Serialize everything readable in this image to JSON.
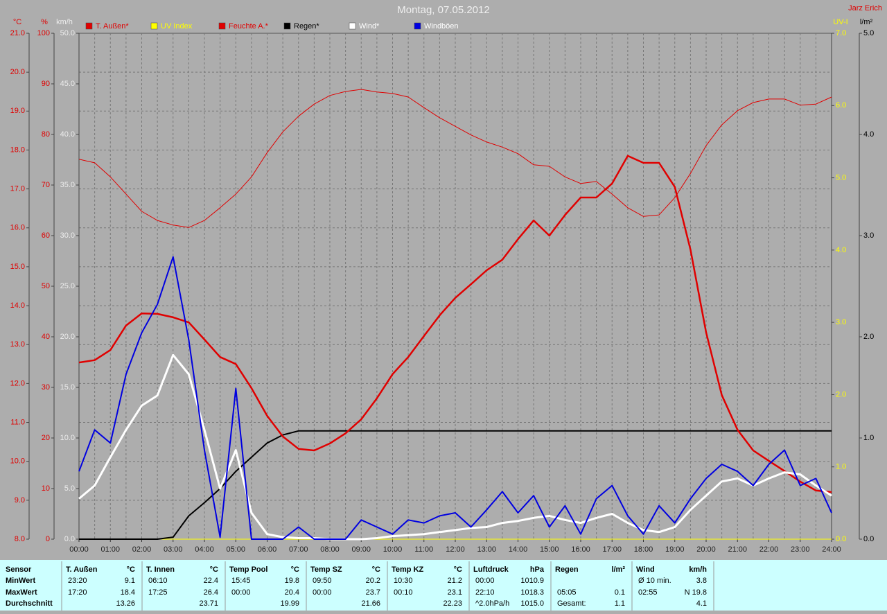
{
  "chart_data": {
    "type": "line",
    "title": "Montag, 07.05.2012",
    "annotation": "Jarz Erich",
    "x": [
      "00:00",
      "00:30",
      "01:00",
      "01:30",
      "02:00",
      "02:30",
      "03:00",
      "03:30",
      "04:00",
      "04:30",
      "05:00",
      "05:30",
      "06:00",
      "06:30",
      "07:00",
      "07:30",
      "08:00",
      "08:30",
      "09:00",
      "09:30",
      "10:00",
      "10:30",
      "11:00",
      "11:30",
      "12:00",
      "12:30",
      "13:00",
      "13:30",
      "14:00",
      "14:30",
      "15:00",
      "15:30",
      "16:00",
      "16:30",
      "17:00",
      "17:30",
      "18:00",
      "18:30",
      "19:00",
      "19:30",
      "20:00",
      "20:30",
      "21:00",
      "21:30",
      "22:00",
      "22:30",
      "23:00",
      "23:30",
      "24:00"
    ],
    "xticks": [
      "00:00",
      "01:00",
      "02:00",
      "03:00",
      "04:00",
      "05:00",
      "06:00",
      "07:00",
      "08:00",
      "09:00",
      "10:00",
      "11:00",
      "12:00",
      "13:00",
      "14:00",
      "15:00",
      "16:00",
      "17:00",
      "18:00",
      "19:00",
      "20:00",
      "21:00",
      "22:00",
      "23:00",
      "24:00"
    ],
    "grid": true,
    "axes": [
      {
        "id": "temp",
        "label": "°C",
        "color": "#e00000",
        "lim": [
          8,
          21
        ],
        "ticks": [
          {
            "value": 8,
            "label": "8.0"
          },
          {
            "value": 9,
            "label": "9.0"
          },
          {
            "value": 10,
            "label": "10.0"
          },
          {
            "value": 11,
            "label": "11.0"
          },
          {
            "value": 12,
            "label": "12.0"
          },
          {
            "value": 13,
            "label": "13.0"
          },
          {
            "value": 14,
            "label": "14.0"
          },
          {
            "value": 15,
            "label": "15.0"
          },
          {
            "value": 16,
            "label": "16.0"
          },
          {
            "value": 17,
            "label": "17.0"
          },
          {
            "value": 18,
            "label": "18.0"
          },
          {
            "value": 19,
            "label": "19.0"
          },
          {
            "value": 20,
            "label": "20.0"
          },
          {
            "value": 21,
            "label": "21.0"
          }
        ]
      },
      {
        "id": "hum",
        "label": "%",
        "color": "#e00000",
        "lim": [
          0,
          100
        ],
        "ticks": [
          0,
          10,
          20,
          30,
          40,
          50,
          60,
          70,
          80,
          90,
          100
        ]
      },
      {
        "id": "wind",
        "label": "km/h",
        "color": "#ececec",
        "lim": [
          0,
          50
        ],
        "ticks": [
          {
            "value": 0,
            "label": "0.0"
          },
          {
            "value": 5,
            "label": "5.0"
          },
          {
            "value": 10,
            "label": "10.0"
          },
          {
            "value": 15,
            "label": "15.0"
          },
          {
            "value": 20,
            "label": "20.0"
          },
          {
            "value": 25,
            "label": "25.0"
          },
          {
            "value": 30,
            "label": "30.0"
          },
          {
            "value": 35,
            "label": "35.0"
          },
          {
            "value": 40,
            "label": "40.0"
          },
          {
            "value": 45,
            "label": "45.0"
          },
          {
            "value": 50,
            "label": "50.0"
          }
        ]
      },
      {
        "id": "uv",
        "label": "UV-I",
        "color": "#ffff00",
        "lim": [
          0,
          7
        ],
        "ticks": [
          {
            "value": 0,
            "label": "0.0"
          },
          {
            "value": 1,
            "label": "1.0"
          },
          {
            "value": 2,
            "label": "2.0"
          },
          {
            "value": 3,
            "label": "3.0"
          },
          {
            "value": 4,
            "label": "4.0"
          },
          {
            "value": 5,
            "label": "5.0"
          },
          {
            "value": 6,
            "label": "6.0"
          },
          {
            "value": 7,
            "label": "7.0"
          }
        ]
      },
      {
        "id": "rain",
        "label": "l/m²",
        "color": "#000000",
        "lim": [
          0,
          5
        ],
        "ticks": [
          {
            "value": 0,
            "label": "0.0"
          },
          {
            "value": 1,
            "label": "1.0"
          },
          {
            "value": 2,
            "label": "2.0"
          },
          {
            "value": 3,
            "label": "3.0"
          },
          {
            "value": 4,
            "label": "4.0"
          },
          {
            "value": 5,
            "label": "5.0"
          }
        ]
      }
    ],
    "series": [
      {
        "name": "T. Außen*",
        "color": "#e00000",
        "axis": "temp",
        "width": 2.5,
        "values": [
          12.54,
          12.6,
          12.86,
          13.49,
          13.8,
          13.79,
          13.7,
          13.57,
          13.13,
          12.68,
          12.5,
          11.88,
          11.17,
          10.64,
          10.32,
          10.28,
          10.46,
          10.72,
          11.08,
          11.62,
          12.24,
          12.68,
          13.22,
          13.75,
          14.2,
          14.55,
          14.91,
          15.18,
          15.71,
          16.19,
          15.8,
          16.33,
          16.78,
          16.78,
          17.14,
          17.85,
          17.67,
          17.67,
          17.05,
          15.44,
          13.31,
          11.7,
          10.81,
          10.28,
          10.01,
          9.75,
          9.48,
          9.25,
          9.21
        ]
      },
      {
        "name": "UV Index",
        "color": "#ffff00",
        "axis": "uv",
        "width": 1,
        "values": [
          0,
          0,
          0,
          0,
          0,
          0,
          0,
          0,
          0,
          0,
          0,
          0,
          0,
          0,
          0,
          0,
          0,
          0,
          0,
          0,
          0,
          0,
          0,
          0,
          0,
          0,
          0,
          0,
          0,
          0,
          0,
          0,
          0,
          0,
          0,
          0,
          0,
          0,
          0,
          0,
          0,
          0,
          0,
          0,
          0,
          0,
          0,
          0,
          0
        ]
      },
      {
        "name": "Feuchte A.*",
        "color": "#e00000",
        "axis": "hum",
        "width": 1,
        "values": [
          75.1,
          74.4,
          71.6,
          68.2,
          64.8,
          63.0,
          62.1,
          61.6,
          63.0,
          65.5,
          68.2,
          71.6,
          76.4,
          80.5,
          83.6,
          86.0,
          87.7,
          88.5,
          88.9,
          88.4,
          88.1,
          87.4,
          85.3,
          83.3,
          81.6,
          79.9,
          78.5,
          77.5,
          76.2,
          74.0,
          73.7,
          71.6,
          70.3,
          70.7,
          68.2,
          65.5,
          63.8,
          64.1,
          67.5,
          72.3,
          77.8,
          81.9,
          84.7,
          86.3,
          87.0,
          87.0,
          85.8,
          86.0,
          87.4
        ]
      },
      {
        "name": "Regen*",
        "color": "#000000",
        "axis": "rain",
        "width": 2,
        "values": [
          0,
          0,
          0,
          0,
          0,
          0,
          0.02,
          0.23,
          0.36,
          0.5,
          0.67,
          0.81,
          0.95,
          1.03,
          1.07,
          1.07,
          1.07,
          1.07,
          1.07,
          1.07,
          1.07,
          1.07,
          1.07,
          1.07,
          1.07,
          1.07,
          1.07,
          1.07,
          1.07,
          1.07,
          1.07,
          1.07,
          1.07,
          1.07,
          1.07,
          1.07,
          1.07,
          1.07,
          1.07,
          1.07,
          1.07,
          1.07,
          1.07,
          1.07,
          1.07,
          1.07,
          1.07,
          1.07,
          1.07
        ]
      },
      {
        "name": "Wind*",
        "color": "#ffffff",
        "axis": "wind",
        "width": 3,
        "values": [
          4.0,
          5.3,
          8.1,
          10.8,
          13.2,
          14.2,
          18.2,
          16.3,
          10.8,
          5.0,
          8.8,
          2.6,
          0.5,
          0.2,
          0.1,
          0.1,
          0,
          0,
          0,
          0.1,
          0.3,
          0.4,
          0.5,
          0.7,
          0.9,
          1.1,
          1.2,
          1.6,
          1.8,
          2.1,
          2.3,
          1.9,
          1.6,
          2.1,
          2.5,
          1.6,
          0.9,
          0.7,
          1.2,
          2.9,
          4.3,
          5.7,
          6.0,
          5.3,
          6.0,
          6.6,
          6.4,
          5.3,
          4.3
        ]
      },
      {
        "name": "Windböen",
        "color": "#0000e0",
        "axis": "wind",
        "width": 2,
        "values": [
          6.7,
          10.8,
          9.5,
          16.3,
          20.4,
          23.2,
          27.9,
          19.7,
          8.8,
          0.2,
          14.9,
          0,
          0,
          0,
          1.2,
          0,
          0,
          0,
          1.9,
          1.2,
          0.5,
          1.9,
          1.6,
          2.3,
          2.6,
          1.2,
          2.9,
          4.7,
          2.6,
          4.3,
          1.2,
          3.3,
          0.5,
          4.0,
          5.3,
          2.3,
          0.5,
          3.3,
          1.6,
          4.0,
          6.0,
          7.4,
          6.7,
          5.3,
          7.4,
          8.8,
          5.3,
          6.0,
          2.6
        ]
      }
    ]
  },
  "table": {
    "row_labels": [
      "Sensor",
      "MinWert",
      "MaxWert",
      "Durchschnitt"
    ],
    "columns": [
      {
        "name": "T. Außen",
        "unit": "°C",
        "min": {
          "time": "23:20",
          "value": "9.1"
        },
        "max": {
          "time": "17:20",
          "value": "18.4"
        },
        "avg": {
          "value": "13.26"
        }
      },
      {
        "name": "T. Innen",
        "unit": "°C",
        "min": {
          "time": "06:10",
          "value": "22.4"
        },
        "max": {
          "time": "17:25",
          "value": "26.4"
        },
        "avg": {
          "value": "23.71"
        }
      },
      {
        "name": "Temp Pool",
        "unit": "°C",
        "min": {
          "time": "15:45",
          "value": "19.8"
        },
        "max": {
          "time": "00:00",
          "value": "20.4"
        },
        "avg": {
          "value": "19.99"
        }
      },
      {
        "name": "Temp SZ",
        "unit": "°C",
        "min": {
          "time": "09:50",
          "value": "20.2"
        },
        "max": {
          "time": "00:00",
          "value": "23.7"
        },
        "avg": {
          "value": "21.66"
        }
      },
      {
        "name": "Temp KZ",
        "unit": "°C",
        "min": {
          "time": "10:30",
          "value": "21.2"
        },
        "max": {
          "time": "00:10",
          "value": "23.1"
        },
        "avg": {
          "value": "22.23"
        }
      },
      {
        "name": "Luftdruck",
        "unit": "hPa",
        "min": {
          "time": "00:00",
          "value": "1010.9"
        },
        "max": {
          "time": "22:10",
          "value": "1018.3"
        },
        "avg": {
          "time": "^2.0hPa/h",
          "value": "1015.0"
        }
      },
      {
        "name": "Regen",
        "unit": "l/m²",
        "max": {
          "time": "05:05",
          "value": "0.1"
        },
        "avg": {
          "time": "Gesamt:",
          "value": "1.1"
        }
      },
      {
        "name": "Wind",
        "unit": "km/h",
        "min": {
          "time": "Ø 10 min.",
          "value": "3.8"
        },
        "max": {
          "time": "02:55",
          "value": "N 19.8"
        },
        "avg": {
          "value": "4.1"
        }
      }
    ]
  }
}
